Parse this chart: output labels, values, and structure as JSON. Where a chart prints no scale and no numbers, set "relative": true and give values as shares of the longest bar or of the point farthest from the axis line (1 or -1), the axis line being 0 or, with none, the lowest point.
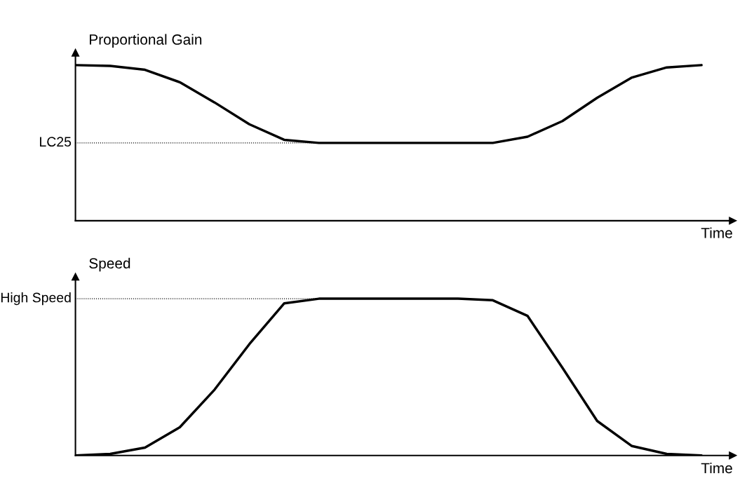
{
  "chart_data": [
    {
      "type": "line",
      "relative": true,
      "ylabel": "Proportional Gain",
      "xlabel": "Time",
      "categories": [
        null,
        null,
        null,
        null,
        null,
        null,
        null,
        null,
        null,
        null,
        null,
        null,
        null,
        null,
        null,
        null,
        null,
        null,
        null
      ],
      "series": [
        {
          "color": "#000000",
          "values": [
            1.0,
            0.995,
            0.97,
            0.89,
            0.76,
            0.62,
            0.52,
            0.5,
            0.5,
            0.5,
            0.5,
            0.5,
            0.5,
            0.54,
            0.64,
            0.79,
            0.92,
            0.985,
            1.0
          ]
        }
      ],
      "ref_lines": [
        {
          "axis": "y",
          "value": 0.5,
          "label": "LC25",
          "color": "#000000",
          "line_style": "dotted"
        }
      ]
    },
    {
      "type": "line",
      "relative": true,
      "ylabel": "Speed",
      "xlabel": "Time",
      "categories": [
        null,
        null,
        null,
        null,
        null,
        null,
        null,
        null,
        null,
        null,
        null,
        null,
        null,
        null,
        null,
        null,
        null,
        null,
        null
      ],
      "series": [
        {
          "color": "#000000",
          "values": [
            0,
            0.01,
            0.05,
            0.18,
            0.42,
            0.71,
            0.97,
            1.0,
            1.0,
            1.0,
            1.0,
            1.0,
            0.99,
            0.89,
            0.56,
            0.22,
            0.06,
            0.01,
            0
          ]
        }
      ],
      "ref_lines": [
        {
          "axis": "y",
          "value": 1.0,
          "label": "High Speed",
          "color": "#000000",
          "line_style": "dotted"
        }
      ]
    }
  ]
}
